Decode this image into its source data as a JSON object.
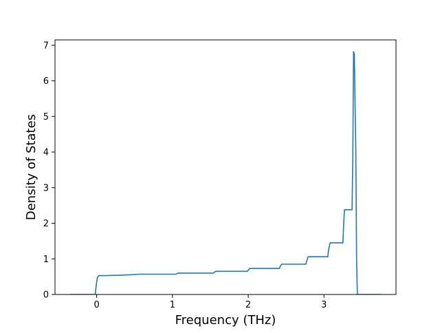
{
  "chart_data": {
    "type": "line",
    "title": "",
    "xlabel": "Frequency (THz)",
    "ylabel": "Density of States",
    "xlim": [
      -0.55,
      3.95
    ],
    "ylim": [
      0,
      7.15
    ],
    "xticks": [
      0,
      1,
      2,
      3
    ],
    "yticks": [
      0,
      1,
      2,
      3,
      4,
      5,
      6,
      7
    ],
    "grid": false,
    "legend": "none",
    "series": [
      {
        "color": "#1f77b4",
        "x": [
          -0.35,
          -0.02,
          0.0,
          0.01,
          0.03,
          0.1,
          0.3,
          0.5,
          0.55,
          0.8,
          1.05,
          1.06,
          1.08,
          1.3,
          1.54,
          1.55,
          1.57,
          1.8,
          1.99,
          2.0,
          2.02,
          2.2,
          2.41,
          2.42,
          2.44,
          2.6,
          2.76,
          2.77,
          2.79,
          2.95,
          3.05,
          3.06,
          3.08,
          3.2,
          3.25,
          3.26,
          3.27,
          3.28,
          3.37,
          3.38,
          3.39,
          3.4,
          3.42,
          3.43,
          3.44,
          3.6,
          3.75
        ],
        "y": [
          0.0,
          0.0,
          0.35,
          0.48,
          0.53,
          0.53,
          0.54,
          0.56,
          0.57,
          0.57,
          0.57,
          0.59,
          0.6,
          0.6,
          0.6,
          0.62,
          0.65,
          0.65,
          0.65,
          0.68,
          0.73,
          0.73,
          0.73,
          0.78,
          0.85,
          0.85,
          0.85,
          0.93,
          1.06,
          1.06,
          1.06,
          1.25,
          1.45,
          1.45,
          1.45,
          2.0,
          2.38,
          2.38,
          2.38,
          3.8,
          6.82,
          6.75,
          4.0,
          1.0,
          0.0,
          0.0,
          0.0
        ]
      }
    ]
  }
}
